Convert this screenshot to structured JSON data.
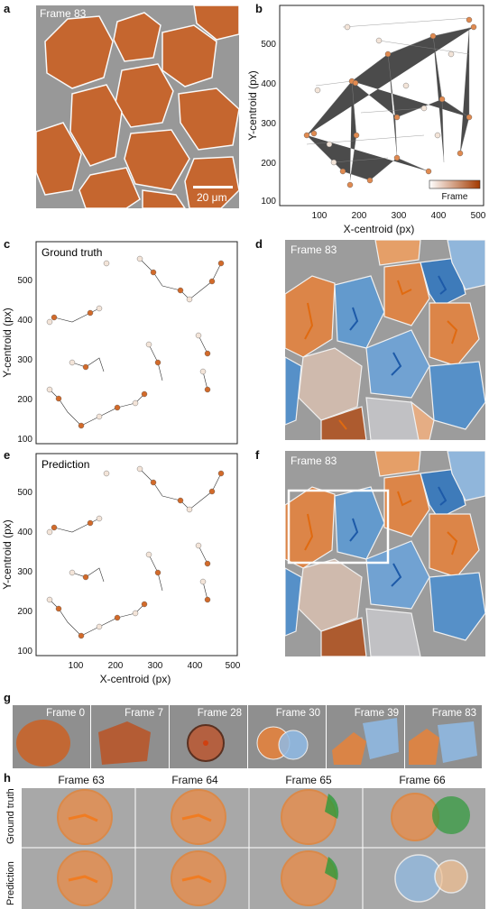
{
  "panels": {
    "a": {
      "letter": "a",
      "frame_label": "Frame 83",
      "scalebar_label": "20 μm"
    },
    "b": {
      "letter": "b",
      "ylabel": "Y-centroid (px)",
      "xlabel": "X-centroid (px)",
      "xticks": [
        "100",
        "200",
        "300",
        "400",
        "500"
      ],
      "yticks": [
        "100",
        "200",
        "300",
        "400",
        "500"
      ],
      "colorbar_label": "Frame"
    },
    "c": {
      "letter": "c",
      "inset_title": "Ground truth",
      "ylabel": "Y-centroid (px)",
      "yticks": [
        "100",
        "200",
        "300",
        "400",
        "500"
      ]
    },
    "d": {
      "letter": "d",
      "frame_label": "Frame 83"
    },
    "e": {
      "letter": "e",
      "inset_title": "Prediction",
      "ylabel": "Y-centroid (px)",
      "xlabel": "X-centroid (px)",
      "xticks": [
        "100",
        "200",
        "300",
        "400",
        "500"
      ],
      "yticks": [
        "100",
        "200",
        "300",
        "400",
        "500"
      ]
    },
    "f": {
      "letter": "f",
      "frame_label": "Frame 83"
    },
    "g": {
      "letter": "g",
      "frames": [
        "Frame 0",
        "Frame 7",
        "Frame 28",
        "Frame 30",
        "Frame 39",
        "Frame 83"
      ]
    },
    "h": {
      "letter": "h",
      "columns": [
        "Frame 63",
        "Frame 64",
        "Frame 65",
        "Frame 66"
      ],
      "rows": [
        "Ground truth",
        "Prediction"
      ]
    }
  },
  "colors": {
    "cell_orange": "#c8642a",
    "track_orange": "#f07c22",
    "track_blue": "#3a86c8",
    "mask_green": "#2e9a3a",
    "background_gray": "#9a9a9a",
    "outline_white": "#ffffff"
  }
}
